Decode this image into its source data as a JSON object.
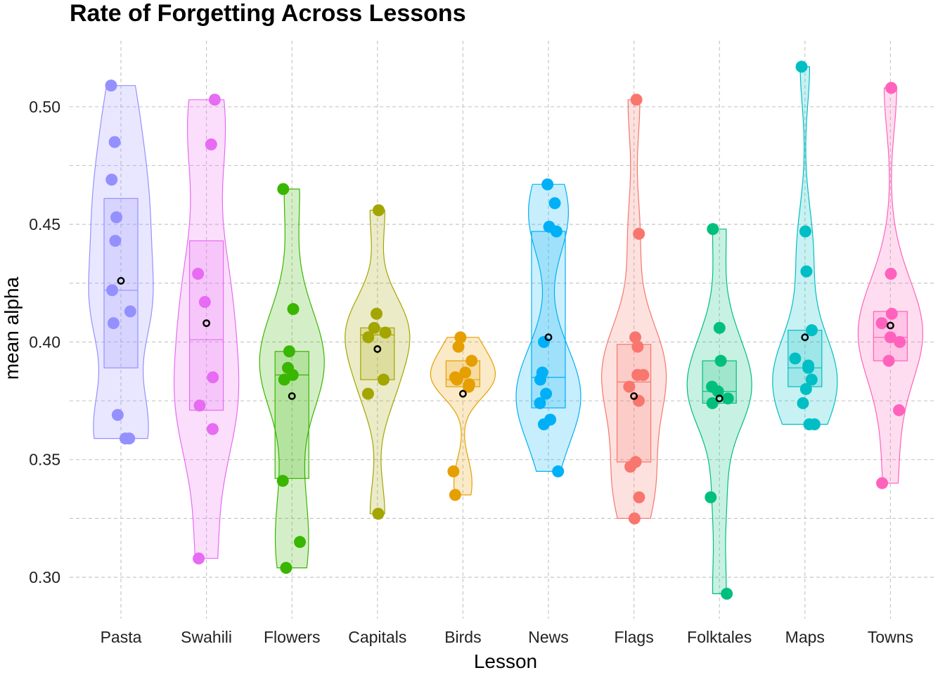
{
  "chart_data": {
    "type": "violin",
    "title": "Rate of Forgetting Across Lessons",
    "xlabel": "Lesson",
    "ylabel": "mean alpha",
    "ylim": [
      0.285,
      0.525
    ],
    "yticks": [
      "0.30",
      "0.35",
      "0.40",
      "0.45",
      "0.50"
    ],
    "grid": true,
    "legend": "none",
    "categories": [
      "Pasta",
      "Swahili",
      "Flowers",
      "Capitals",
      "Birds",
      "News",
      "Flags",
      "Folktales",
      "Maps",
      "Towns"
    ],
    "groups": [
      {
        "name": "Pasta",
        "color": "#9590FF",
        "points": [
          0.509,
          0.485,
          0.469,
          0.453,
          0.443,
          0.422,
          0.413,
          0.408,
          0.369,
          0.359,
          0.359
        ],
        "box": {
          "q1": 0.389,
          "median": 0.422,
          "q3": 0.461
        },
        "mean": 0.426,
        "range": [
          0.359,
          0.509
        ]
      },
      {
        "name": "Swahili",
        "color": "#E76BF3",
        "points": [
          0.503,
          0.484,
          0.429,
          0.417,
          0.385,
          0.373,
          0.363,
          0.308
        ],
        "box": {
          "q1": 0.371,
          "median": 0.401,
          "q3": 0.443
        },
        "mean": 0.408,
        "range": [
          0.308,
          0.503
        ]
      },
      {
        "name": "Flowers",
        "color": "#39B600",
        "points": [
          0.465,
          0.414,
          0.396,
          0.389,
          0.386,
          0.384,
          0.341,
          0.315,
          0.304
        ],
        "box": {
          "q1": 0.342,
          "median": 0.386,
          "q3": 0.396
        },
        "mean": 0.377,
        "range": [
          0.304,
          0.465
        ]
      },
      {
        "name": "Capitals",
        "color": "#A3A500",
        "points": [
          0.456,
          0.412,
          0.406,
          0.404,
          0.402,
          0.384,
          0.378,
          0.327
        ],
        "box": {
          "q1": 0.384,
          "median": 0.403,
          "q3": 0.406
        },
        "mean": 0.397,
        "range": [
          0.327,
          0.456
        ]
      },
      {
        "name": "Birds",
        "color": "#E69F00",
        "points": [
          0.402,
          0.398,
          0.392,
          0.387,
          0.385,
          0.384,
          0.382,
          0.381,
          0.345,
          0.335
        ],
        "box": {
          "q1": 0.381,
          "median": 0.384,
          "q3": 0.392
        },
        "mean": 0.378,
        "range": [
          0.335,
          0.402
        ]
      },
      {
        "name": "News",
        "color": "#00B0F6",
        "points": [
          0.467,
          0.459,
          0.449,
          0.447,
          0.4,
          0.387,
          0.384,
          0.378,
          0.374,
          0.367,
          0.365,
          0.345
        ],
        "box": {
          "q1": 0.372,
          "median": 0.385,
          "q3": 0.447
        },
        "mean": 0.402,
        "range": [
          0.345,
          0.467
        ]
      },
      {
        "name": "Flags",
        "color": "#F8766D",
        "points": [
          0.503,
          0.446,
          0.402,
          0.398,
          0.386,
          0.386,
          0.381,
          0.375,
          0.349,
          0.347,
          0.334,
          0.325
        ],
        "box": {
          "q1": 0.349,
          "median": 0.383,
          "q3": 0.399
        },
        "mean": 0.377,
        "range": [
          0.325,
          0.503
        ]
      },
      {
        "name": "Folktales",
        "color": "#00BF7D",
        "points": [
          0.448,
          0.406,
          0.392,
          0.381,
          0.379,
          0.376,
          0.374,
          0.334,
          0.293
        ],
        "box": {
          "q1": 0.374,
          "median": 0.379,
          "q3": 0.392
        },
        "mean": 0.376,
        "range": [
          0.293,
          0.448
        ]
      },
      {
        "name": "Maps",
        "color": "#00BFC4",
        "points": [
          0.517,
          0.447,
          0.43,
          0.405,
          0.393,
          0.39,
          0.389,
          0.384,
          0.38,
          0.374,
          0.365,
          0.365
        ],
        "box": {
          "q1": 0.381,
          "median": 0.389,
          "q3": 0.405
        },
        "mean": 0.402,
        "range": [
          0.365,
          0.517
        ]
      },
      {
        "name": "Towns",
        "color": "#FF62BC",
        "points": [
          0.508,
          0.429,
          0.412,
          0.408,
          0.402,
          0.4,
          0.392,
          0.371,
          0.34
        ],
        "box": {
          "q1": 0.392,
          "median": 0.402,
          "q3": 0.413
        },
        "mean": 0.407,
        "range": [
          0.34,
          0.508
        ]
      }
    ]
  }
}
